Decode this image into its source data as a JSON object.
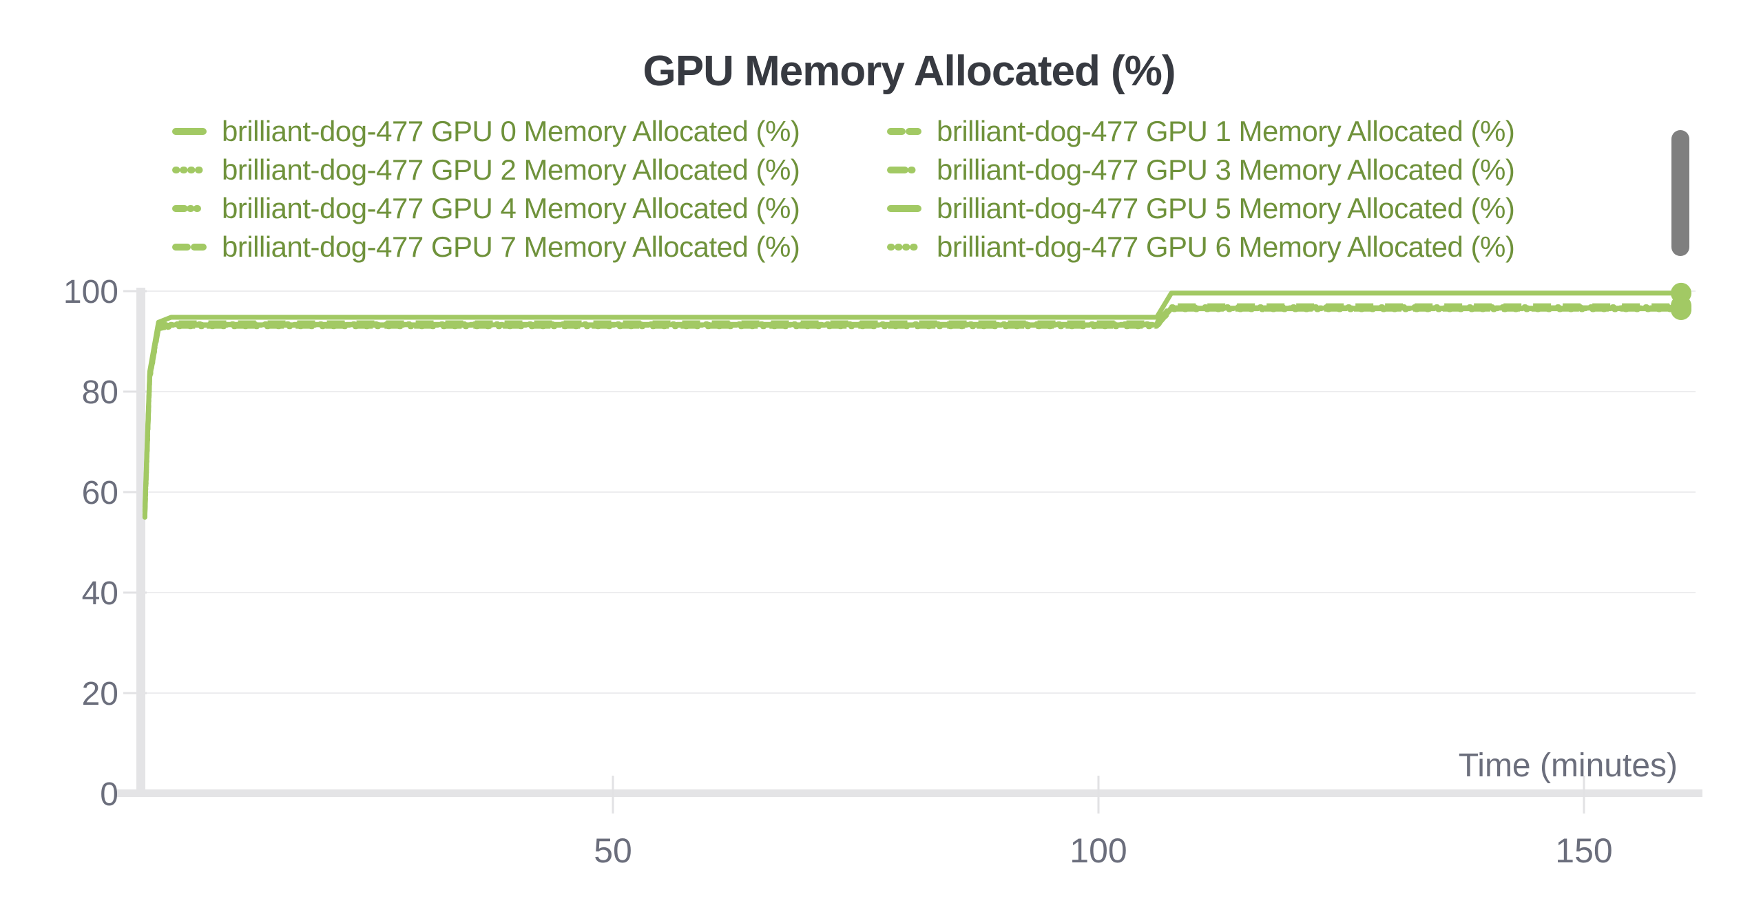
{
  "chart": {
    "title": "GPU Memory Allocated (%)",
    "xlabel": "Time (minutes)"
  },
  "chart_data": {
    "type": "line",
    "title": "GPU Memory Allocated (%)",
    "xlabel": "Time (minutes)",
    "ylabel": "",
    "run_name": "brilliant-dog-477",
    "xlim": [
      0,
      165
    ],
    "ylim": [
      0,
      100
    ],
    "xticks": [
      50,
      100,
      150
    ],
    "yticks": [
      100,
      80,
      60,
      40,
      20,
      0
    ],
    "grid": true,
    "legend_position": "top",
    "line_color": "#a2c964",
    "legend_text_color": "#6f923b",
    "axis_text_color": "#6b6e7c",
    "series": [
      {
        "label": "brilliant-dog-477 GPU 0 Memory Allocated (%)",
        "gpu": 0,
        "dash": "solid",
        "points": [
          [
            1.8,
            57
          ],
          [
            2.3,
            84
          ],
          [
            3.2,
            93.8
          ],
          [
            4.5,
            94.8
          ],
          [
            106,
            94.8
          ],
          [
            107.5,
            99.6
          ],
          [
            160,
            99.6
          ]
        ]
      },
      {
        "label": "brilliant-dog-477 GPU 1 Memory Allocated (%)",
        "gpu": 1,
        "dash": "dashed",
        "points": [
          [
            1.8,
            56
          ],
          [
            2.3,
            83
          ],
          [
            3.2,
            92.9
          ],
          [
            4.5,
            93.7
          ],
          [
            106,
            93.7
          ],
          [
            107.5,
            97.1
          ],
          [
            160,
            97.1
          ]
        ]
      },
      {
        "label": "brilliant-dog-477 GPU 2 Memory Allocated (%)",
        "gpu": 2,
        "dash": "dotted",
        "points": [
          [
            1.8,
            55
          ],
          [
            2.3,
            82.5
          ],
          [
            3.2,
            92.7
          ],
          [
            4.5,
            93.5
          ],
          [
            106,
            93.5
          ],
          [
            107.5,
            96.9
          ],
          [
            160,
            96.9
          ]
        ]
      },
      {
        "label": "brilliant-dog-477 GPU 3 Memory Allocated (%)",
        "gpu": 3,
        "dash": "dash-dot",
        "points": [
          [
            1.8,
            56.5
          ],
          [
            2.3,
            83.5
          ],
          [
            3.2,
            92.8
          ],
          [
            4.5,
            93.4
          ],
          [
            106,
            93.4
          ],
          [
            107.5,
            96.7
          ],
          [
            160,
            96.7
          ]
        ]
      },
      {
        "label": "brilliant-dog-477 GPU 4 Memory Allocated (%)",
        "gpu": 4,
        "dash": "dash-dot-dot",
        "points": [
          [
            1.8,
            55.5
          ],
          [
            2.3,
            82.8
          ],
          [
            3.2,
            92.6
          ],
          [
            4.5,
            93.2
          ],
          [
            106,
            93.2
          ],
          [
            107.5,
            96.5
          ],
          [
            160,
            96.5
          ]
        ]
      },
      {
        "label": "brilliant-dog-477 GPU 5 Memory Allocated (%)",
        "gpu": 5,
        "dash": "solid",
        "points": [
          [
            1.8,
            56.2
          ],
          [
            2.3,
            83.2
          ],
          [
            3.2,
            92.8
          ],
          [
            4.5,
            93.3
          ],
          [
            106,
            93.3
          ],
          [
            107.5,
            96.6
          ],
          [
            160,
            96.6
          ]
        ]
      },
      {
        "label": "brilliant-dog-477 GPU 7 Memory Allocated (%)",
        "gpu": 7,
        "dash": "dashed",
        "points": [
          [
            1.8,
            55.2
          ],
          [
            2.3,
            82.6
          ],
          [
            3.2,
            92.5
          ],
          [
            4.5,
            93.0
          ],
          [
            106,
            93.0
          ],
          [
            107.5,
            96.4
          ],
          [
            160,
            96.4
          ]
        ]
      },
      {
        "label": "brilliant-dog-477 GPU 6 Memory Allocated (%)",
        "gpu": 6,
        "dash": "dotted",
        "points": [
          [
            1.8,
            55.0
          ],
          [
            2.3,
            82.4
          ],
          [
            3.2,
            92.4
          ],
          [
            4.5,
            92.9
          ],
          [
            106,
            92.9
          ],
          [
            107.5,
            96.3
          ],
          [
            160,
            96.3
          ]
        ]
      }
    ]
  }
}
